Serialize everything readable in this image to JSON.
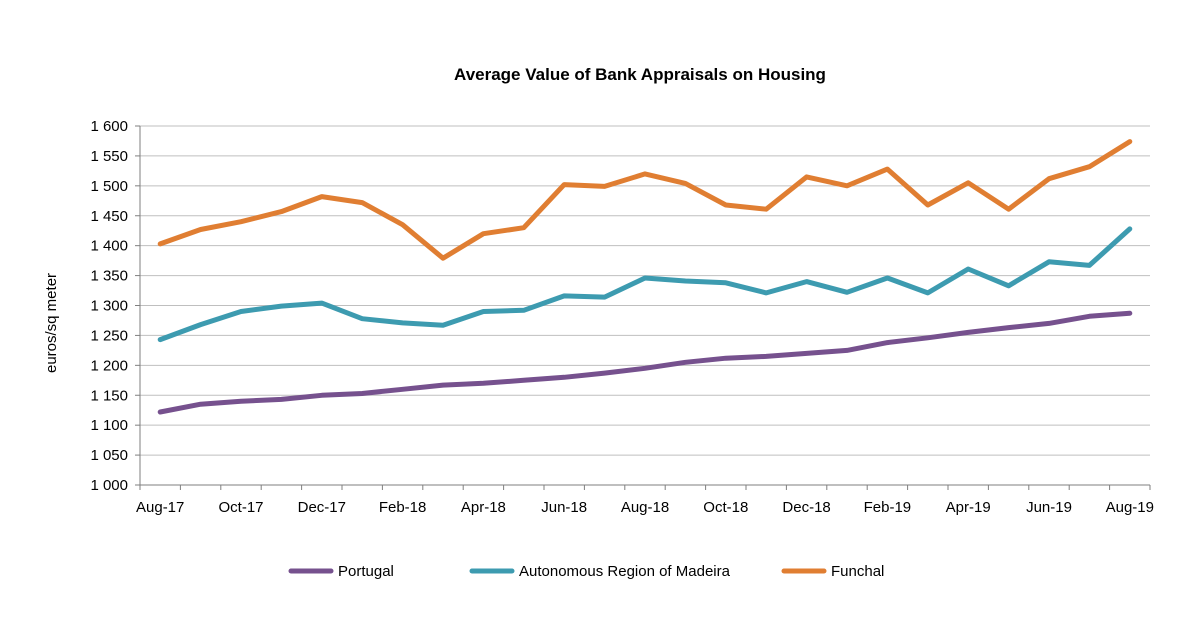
{
  "chart_data": {
    "type": "line",
    "title": "Average Value of Bank Appraisals on Housing",
    "xlabel": "",
    "ylabel": "euros/sq meter",
    "ylim": [
      1000,
      1600
    ],
    "yticks": [
      1000,
      1050,
      1100,
      1150,
      1200,
      1250,
      1300,
      1350,
      1400,
      1450,
      1500,
      1550,
      1600
    ],
    "ytick_labels": [
      "1 000",
      "1 050",
      "1 100",
      "1 150",
      "1 200",
      "1 250",
      "1 300",
      "1 350",
      "1 400",
      "1 450",
      "1 500",
      "1 550",
      "1 600"
    ],
    "categories": [
      "Aug-17",
      "Sep-17",
      "Oct-17",
      "Nov-17",
      "Dec-17",
      "Jan-18",
      "Feb-18",
      "Mar-18",
      "Apr-18",
      "May-18",
      "Jun-18",
      "Jul-18",
      "Aug-18",
      "Sep-18",
      "Oct-18",
      "Nov-18",
      "Dec-18",
      "Jan-19",
      "Feb-19",
      "Mar-19",
      "Apr-19",
      "May-19",
      "Jun-19",
      "Jul-19",
      "Aug-19"
    ],
    "xtick_labels_shown": [
      "Aug-17",
      "Oct-17",
      "Dec-17",
      "Feb-18",
      "Apr-18",
      "Jun-18",
      "Aug-18",
      "Oct-18",
      "Dec-18",
      "Feb-19",
      "Apr-19",
      "Jun-19",
      "Aug-19"
    ],
    "grid": "horizontal",
    "legend_position": "bottom",
    "series": [
      {
        "name": "Portugal",
        "color": "#76518E",
        "values": [
          1122,
          1135,
          1140,
          1143,
          1150,
          1153,
          1160,
          1167,
          1170,
          1175,
          1180,
          1187,
          1195,
          1205,
          1212,
          1215,
          1220,
          1225,
          1238,
          1246,
          1255,
          1263,
          1270,
          1282,
          1287
        ]
      },
      {
        "name": "Autonomous Region of Madeira",
        "color": "#3D9BB0",
        "values": [
          1243,
          1268,
          1290,
          1299,
          1304,
          1278,
          1271,
          1267,
          1290,
          1292,
          1316,
          1314,
          1346,
          1341,
          1338,
          1321,
          1340,
          1322,
          1346,
          1321,
          1361,
          1333,
          1373,
          1367,
          1428
        ]
      },
      {
        "name": "Funchal",
        "color": "#E07E32",
        "values": [
          1403,
          1427,
          1440,
          1457,
          1482,
          1472,
          1435,
          1379,
          1420,
          1430,
          1502,
          1499,
          1520,
          1504,
          1468,
          1461,
          1515,
          1500,
          1528,
          1468,
          1505,
          1461,
          1512,
          1532,
          1574
        ]
      }
    ]
  },
  "colors": {
    "gridline": "#BFBFBF",
    "axis": "#7F7F7F"
  }
}
